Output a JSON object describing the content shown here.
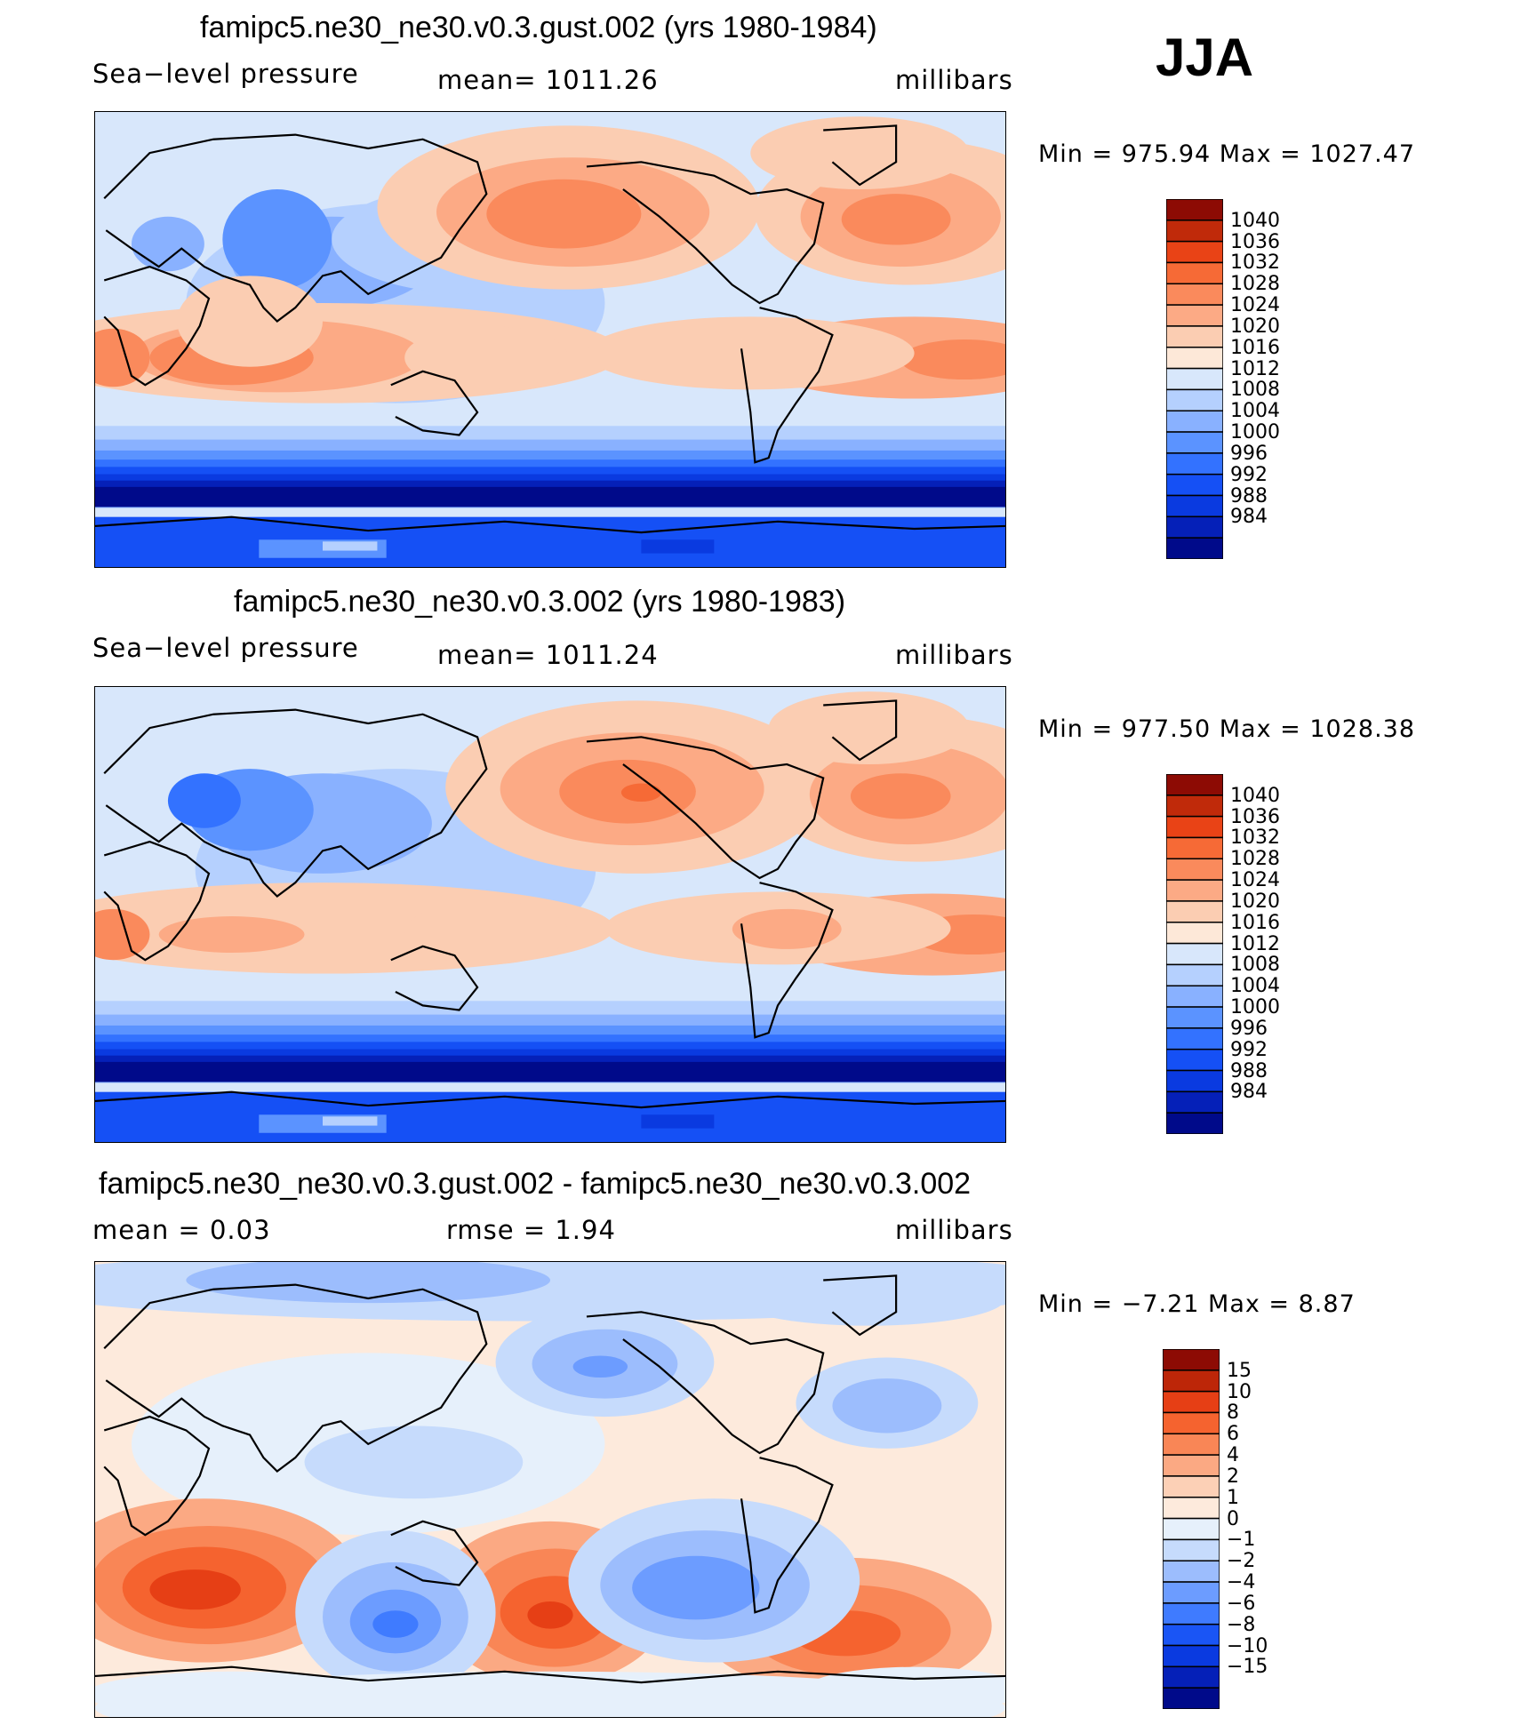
{
  "season": "JJA",
  "colors": {
    "levels_abs": [
      "#000a8a",
      "#0520b8",
      "#0a3ae0",
      "#1550f5",
      "#3372ff",
      "#5b93ff",
      "#89b1ff",
      "#b5d0fe",
      "#d8e7fb",
      "#fde8d8",
      "#fbcdb2",
      "#fcaa85",
      "#fa8a5c",
      "#f66a36",
      "#e94316",
      "#c02a0a",
      "#8d0b04"
    ],
    "levels_diff": [
      "#000a8a",
      "#0520b8",
      "#0a3ae0",
      "#1a55f5",
      "#3f7bff",
      "#6c9cff",
      "#9cbdfd",
      "#c6dbfc",
      "#e6f0fb",
      "#fdeadc",
      "#fcd0b6",
      "#fba983",
      "#f98656",
      "#f5632f",
      "#e63f15",
      "#bd2608",
      "#8d0b04"
    ]
  },
  "panels": [
    {
      "title": "famipc5.ne30_ne30.v0.3.gust.002 (yrs 1980-1984)",
      "left_label": "Sea−level pressure",
      "center_label": "mean=  1011.26",
      "right_label": "millibars",
      "stats": "Min  =  975.94  Max  =  1027.47",
      "colorbar_ticks": [
        "1040",
        "1036",
        "1032",
        "1028",
        "1024",
        "1020",
        "1016",
        "1012",
        "1008",
        "1004",
        "1000",
        "996",
        "992",
        "988",
        "984"
      ]
    },
    {
      "title": "famipc5.ne30_ne30.v0.3.002 (yrs 1980-1983)",
      "left_label": "Sea−level pressure",
      "center_label": "mean=  1011.24",
      "right_label": "millibars",
      "stats": "Min  =  977.50  Max  =  1028.38",
      "colorbar_ticks": [
        "1040",
        "1036",
        "1032",
        "1028",
        "1024",
        "1020",
        "1016",
        "1012",
        "1008",
        "1004",
        "1000",
        "996",
        "992",
        "988",
        "984"
      ]
    },
    {
      "title": "famipc5.ne30_ne30.v0.3.gust.002 - famipc5.ne30_ne30.v0.3.002",
      "left_label": "mean  =      0.03",
      "center_label": "rmse  =      1.94",
      "right_label": "millibars",
      "stats": "Min  =    −7.21  Max  =       8.87",
      "colorbar_ticks": [
        "15",
        "10",
        "8",
        "6",
        "4",
        "2",
        "1",
        "0",
        "−1",
        "−2",
        "−4",
        "−6",
        "−8",
        "−10",
        "−15"
      ]
    }
  ],
  "chart_data": [
    {
      "type": "heatmap",
      "title": "famipc5.ne30_ne30.v0.3.gust.002 (yrs 1980-1984)",
      "variable": "Sea-level pressure",
      "units": "millibars",
      "mean": 1011.26,
      "min": 975.94,
      "max": 1027.47,
      "contour_levels": [
        984,
        988,
        992,
        996,
        1000,
        1004,
        1008,
        1012,
        1016,
        1020,
        1024,
        1028,
        1032,
        1036,
        1040
      ]
    },
    {
      "type": "heatmap",
      "title": "famipc5.ne30_ne30.v0.3.002 (yrs 1980-1983)",
      "variable": "Sea-level pressure",
      "units": "millibars",
      "mean": 1011.24,
      "min": 977.5,
      "max": 1028.38,
      "contour_levels": [
        984,
        988,
        992,
        996,
        1000,
        1004,
        1008,
        1012,
        1016,
        1020,
        1024,
        1028,
        1032,
        1036,
        1040
      ]
    },
    {
      "type": "heatmap",
      "title": "famipc5.ne30_ne30.v0.3.gust.002 - famipc5.ne30_ne30.v0.3.002",
      "units": "millibars",
      "mean": 0.03,
      "rmse": 1.94,
      "min": -7.21,
      "max": 8.87,
      "contour_levels": [
        -15,
        -10,
        -8,
        -6,
        -4,
        -2,
        -1,
        0,
        1,
        2,
        4,
        6,
        8,
        10,
        15
      ]
    }
  ]
}
